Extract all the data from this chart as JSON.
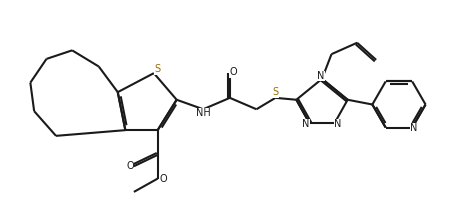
{
  "bg": "#ffffff",
  "lc": "#1a1a1a",
  "sc": "#9a7000",
  "lw": 1.5,
  "dbo": 0.018,
  "fs": 7.0,
  "figsize": [
    4.54,
    2.09
  ],
  "dpi": 100,
  "xlim": [
    -0.05,
    4.55
  ],
  "ylim": [
    -0.05,
    2.15
  ]
}
